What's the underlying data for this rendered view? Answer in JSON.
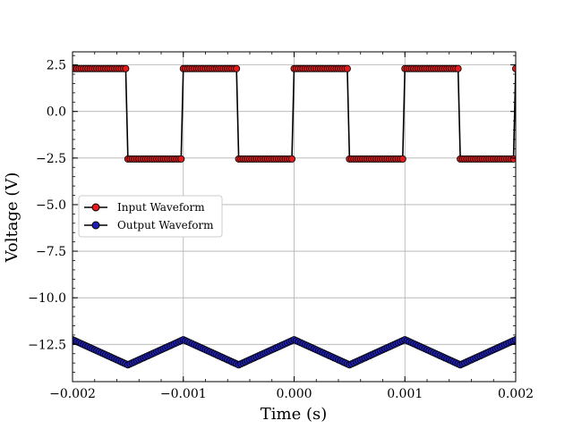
{
  "chart_data": {
    "type": "line",
    "title": "",
    "xlabel": "Time (s)",
    "ylabel": "Voltage (V)",
    "xlim": [
      -0.002,
      0.002
    ],
    "ylim": [
      -14.5,
      3.2
    ],
    "x_ticks": [
      -0.002,
      -0.001,
      0.0,
      0.001,
      0.002
    ],
    "x_tick_labels": [
      "−0.002",
      "−0.001",
      "0.000",
      "0.001",
      "0.002"
    ],
    "y_ticks": [
      2.5,
      0.0,
      -2.5,
      -5.0,
      -7.5,
      -10.0,
      -12.5
    ],
    "y_tick_labels": [
      "2.5",
      "0.0",
      "−2.5",
      "−5.0",
      "−7.5",
      "−10.0",
      "−12.5"
    ],
    "grid": true,
    "legend_position": "center-left",
    "series": [
      {
        "name": "Input Waveform",
        "color": "#e41a1c",
        "marker_edge": "#000000",
        "line_color": "#000000",
        "shape": "square",
        "frequency_hz": 1000,
        "high": 2.3,
        "low": -2.55,
        "n_points": 200
      },
      {
        "name": "Output Waveform",
        "color": "#1f1fb4",
        "marker_edge": "#000000",
        "line_color": "#000000",
        "shape": "triangle",
        "frequency_hz": 1000,
        "max": -12.25,
        "min": -13.6,
        "n_points": 200
      }
    ]
  }
}
